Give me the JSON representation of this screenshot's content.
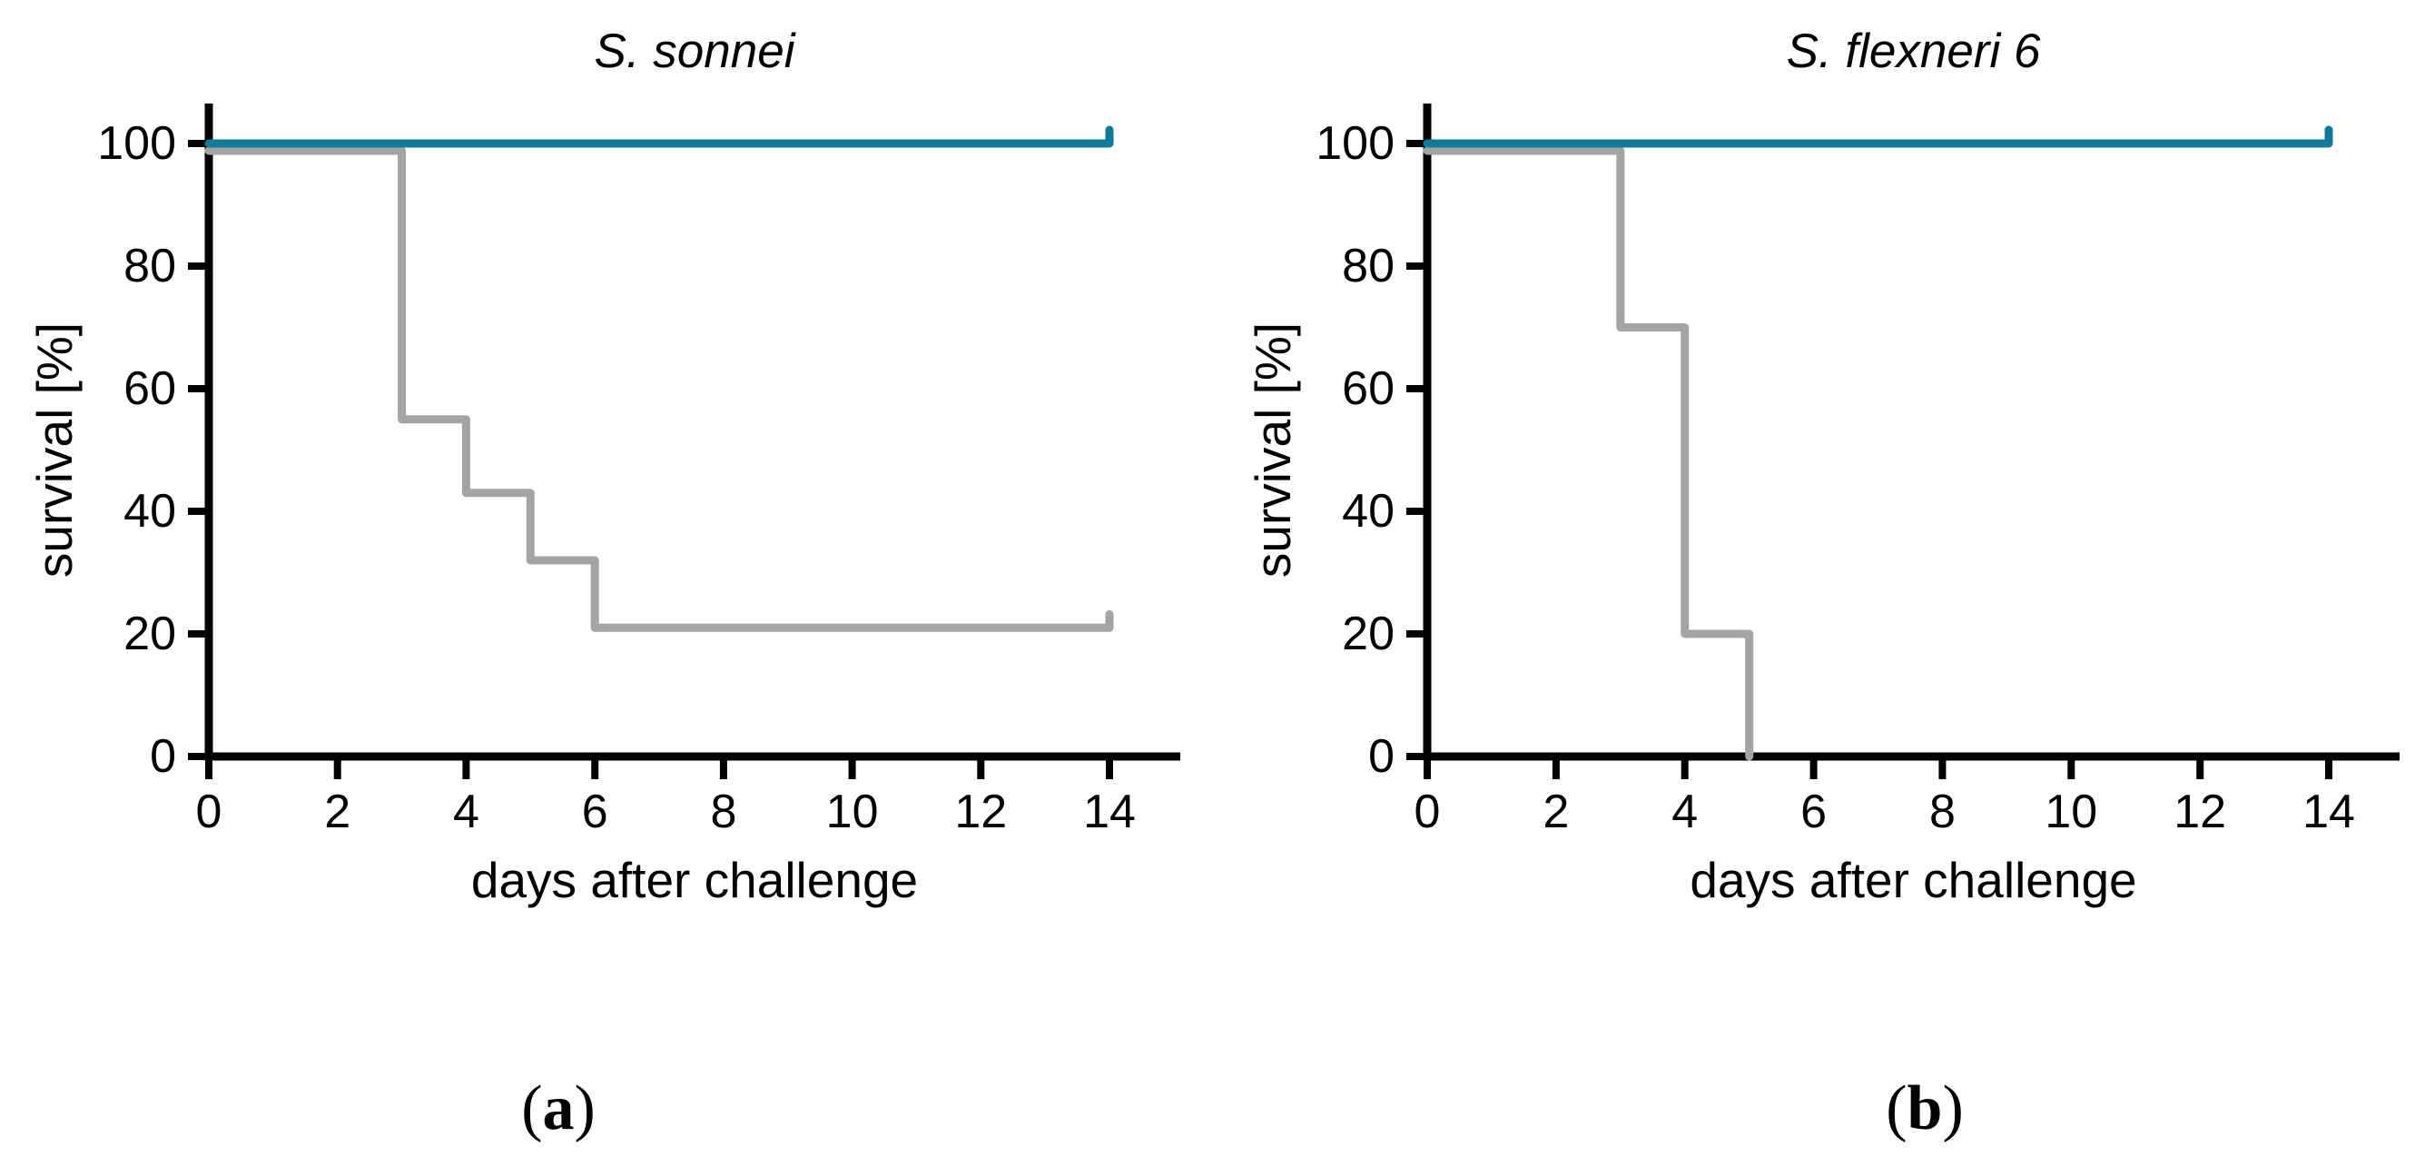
{
  "canvas": {
    "background": "#ffffff",
    "axis_color": "#000000"
  },
  "chart_data": [
    {
      "id": "a",
      "type": "line",
      "style": "step",
      "title": "S. sonnei",
      "xlabel": "days after challenge",
      "ylabel": "survival [%]",
      "caption": {
        "open": "(",
        "letter": "a",
        "close": ")"
      },
      "xlim": [
        0,
        15.1
      ],
      "ylim": [
        0,
        100
      ],
      "x_ticks": [
        0,
        2,
        4,
        6,
        8,
        10,
        12,
        14
      ],
      "y_ticks": [
        0,
        20,
        40,
        60,
        80,
        100
      ],
      "grid": false,
      "legend": null,
      "series": [
        {
          "name": "teal",
          "color": "#0e7c97",
          "censored_at_end": true,
          "points": [
            [
              0,
              100
            ],
            [
              14,
              100
            ]
          ]
        },
        {
          "name": "grey",
          "color": "#a4a4a4",
          "censored_at_end": true,
          "points": [
            [
              0,
              100
            ],
            [
              3,
              100
            ],
            [
              3,
              55
            ],
            [
              4,
              55
            ],
            [
              4,
              43
            ],
            [
              5,
              43
            ],
            [
              5,
              32
            ],
            [
              6,
              32
            ],
            [
              6,
              21
            ],
            [
              14,
              21
            ]
          ]
        }
      ]
    },
    {
      "id": "b",
      "type": "line",
      "style": "step",
      "title": "S. flexneri 6",
      "xlabel": "days after challenge",
      "ylabel": "survival [%]",
      "caption": {
        "open": "(",
        "letter": "b",
        "close": ")"
      },
      "xlim": [
        0,
        15.1
      ],
      "ylim": [
        0,
        100
      ],
      "x_ticks": [
        0,
        2,
        4,
        6,
        8,
        10,
        12,
        14
      ],
      "y_ticks": [
        0,
        20,
        40,
        60,
        80,
        100
      ],
      "grid": false,
      "legend": null,
      "series": [
        {
          "name": "teal",
          "color": "#0e7c97",
          "censored_at_end": true,
          "points": [
            [
              0,
              100
            ],
            [
              14,
              100
            ]
          ]
        },
        {
          "name": "grey",
          "color": "#a4a4a4",
          "censored_at_end": false,
          "points": [
            [
              0,
              100
            ],
            [
              3,
              100
            ],
            [
              3,
              70
            ],
            [
              4,
              70
            ],
            [
              4,
              20
            ],
            [
              5,
              20
            ],
            [
              5,
              0
            ]
          ]
        }
      ]
    }
  ]
}
